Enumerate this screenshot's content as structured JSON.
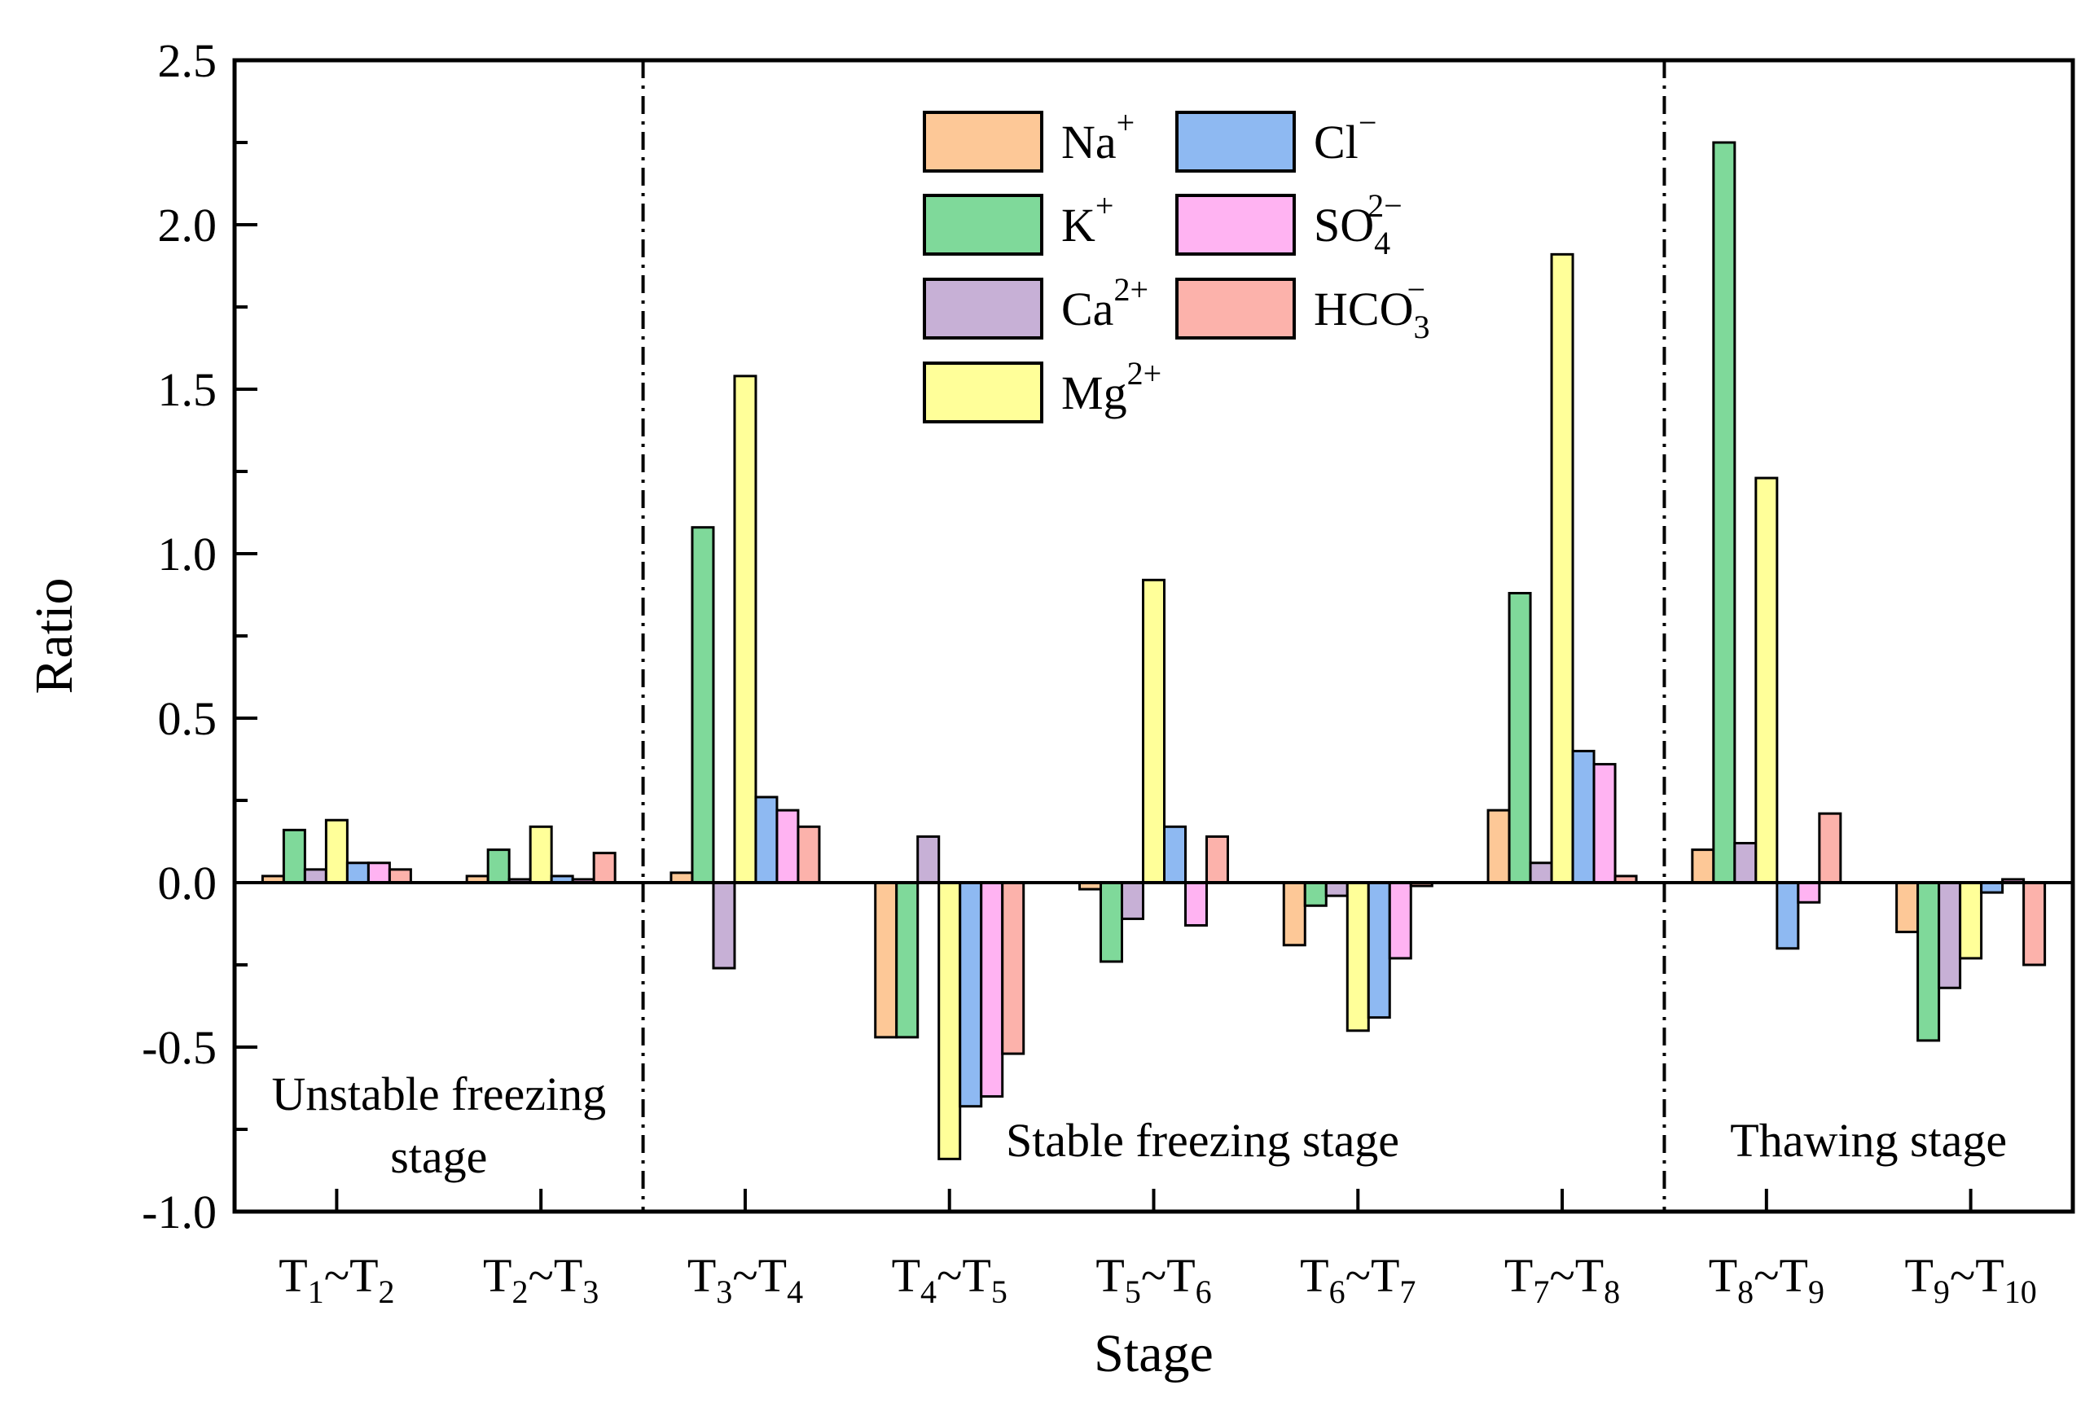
{
  "chart_data": {
    "type": "bar",
    "xlabel": "Stage",
    "ylabel": "Ratio",
    "ylim": [
      -1.0,
      2.5
    ],
    "yticks": [
      "-1.0",
      "-0.5",
      "0.0",
      "0.5",
      "1.0",
      "1.5",
      "2.0",
      "2.5"
    ],
    "categories": [
      {
        "sub1": "1",
        "sub2": "2"
      },
      {
        "sub1": "2",
        "sub2": "3"
      },
      {
        "sub1": "3",
        "sub2": "4"
      },
      {
        "sub1": "4",
        "sub2": "5"
      },
      {
        "sub1": "5",
        "sub2": "6"
      },
      {
        "sub1": "6",
        "sub2": "7"
      },
      {
        "sub1": "7",
        "sub2": "8"
      },
      {
        "sub1": "8",
        "sub2": "9"
      },
      {
        "sub1": "9",
        "sub2": "10"
      }
    ],
    "series": [
      {
        "name": "Na",
        "sup": "+",
        "sub": "",
        "color": "#FDC897",
        "values": [
          0.02,
          0.02,
          0.03,
          -0.47,
          -0.02,
          -0.19,
          0.22,
          0.1,
          -0.15
        ]
      },
      {
        "name": "K",
        "sup": "+",
        "sub": "",
        "color": "#7FD99A",
        "values": [
          0.16,
          0.1,
          1.08,
          -0.47,
          -0.24,
          -0.07,
          0.88,
          2.25,
          -0.48
        ]
      },
      {
        "name": "Ca",
        "sup": "2+",
        "sub": "",
        "color": "#C7B0D6",
        "values": [
          0.04,
          0.01,
          -0.26,
          0.14,
          -0.11,
          -0.04,
          0.06,
          0.12,
          -0.32
        ]
      },
      {
        "name": "Mg",
        "sup": "2+",
        "sub": "",
        "color": "#FFFF99",
        "values": [
          0.19,
          0.17,
          1.54,
          -0.84,
          0.92,
          -0.45,
          1.91,
          1.23,
          -0.23
        ]
      },
      {
        "name": "Cl",
        "sup": "−",
        "sub": "",
        "color": "#8EB9F2",
        "values": [
          0.06,
          0.02,
          0.26,
          -0.68,
          0.17,
          -0.41,
          0.4,
          -0.2,
          -0.03
        ]
      },
      {
        "name": "SO",
        "sup": "2−",
        "sub": "4",
        "color": "#FFB3F2",
        "values": [
          0.06,
          0.01,
          0.22,
          -0.65,
          -0.13,
          -0.23,
          0.36,
          -0.06,
          0.01
        ]
      },
      {
        "name": "HCO",
        "sup": "−",
        "sub": "3",
        "color": "#FCB2AB",
        "values": [
          0.04,
          0.09,
          0.17,
          -0.52,
          0.14,
          -0.01,
          0.02,
          0.21,
          -0.25
        ]
      }
    ],
    "stages": [
      {
        "line1": "Unstable freezing",
        "line2": "stage"
      },
      {
        "line1": "Stable freezing stage",
        "line2": ""
      },
      {
        "line1": "Thawing stage",
        "line2": ""
      }
    ]
  }
}
